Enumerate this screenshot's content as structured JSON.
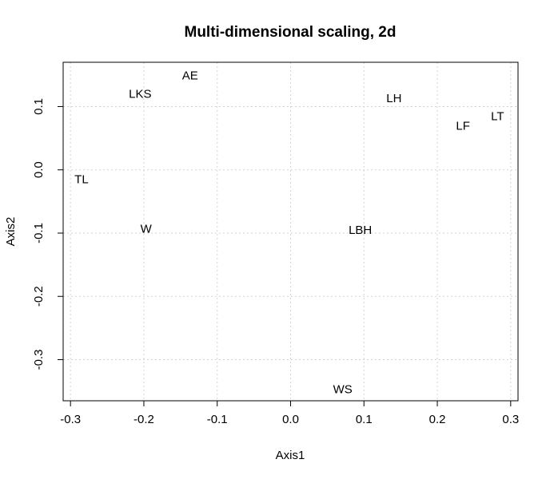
{
  "chart_data": {
    "type": "scatter",
    "title": "Multi-dimensional scaling, 2d",
    "xlabel": "Axis1",
    "ylabel": "Axis2",
    "xlim": [
      -0.31,
      0.31
    ],
    "ylim": [
      -0.365,
      0.17
    ],
    "grid": true,
    "x_ticks": [
      {
        "value": -0.3,
        "label": "-0.3"
      },
      {
        "value": -0.2,
        "label": "-0.2"
      },
      {
        "value": -0.1,
        "label": "-0.1"
      },
      {
        "value": 0.0,
        "label": "0.0"
      },
      {
        "value": 0.1,
        "label": "0.1"
      },
      {
        "value": 0.2,
        "label": "0.2"
      },
      {
        "value": 0.3,
        "label": "0.3"
      }
    ],
    "y_ticks": [
      {
        "value": 0.1,
        "label": "0.1"
      },
      {
        "value": 0.0,
        "label": "0.0"
      },
      {
        "value": -0.1,
        "label": "-0.1"
      },
      {
        "value": -0.2,
        "label": "-0.2"
      },
      {
        "value": -0.3,
        "label": "-0.3"
      }
    ],
    "points": [
      {
        "label": "AE",
        "x": -0.137,
        "y": 0.149
      },
      {
        "label": "LKS",
        "x": -0.205,
        "y": 0.12
      },
      {
        "label": "LH",
        "x": 0.141,
        "y": 0.113
      },
      {
        "label": "LT",
        "x": 0.282,
        "y": 0.085
      },
      {
        "label": "LF",
        "x": 0.235,
        "y": 0.07
      },
      {
        "label": "TL",
        "x": -0.285,
        "y": -0.015
      },
      {
        "label": "W",
        "x": -0.197,
        "y": -0.093
      },
      {
        "label": "LBH",
        "x": 0.095,
        "y": -0.095
      },
      {
        "label": "WS",
        "x": 0.071,
        "y": -0.347
      }
    ]
  }
}
